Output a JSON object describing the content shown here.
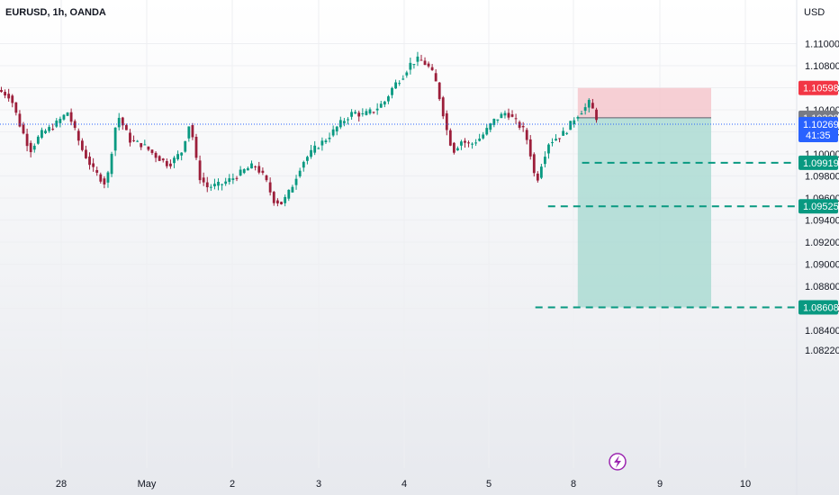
{
  "header": {
    "symbol_title": "EURUSD, 1h, OANDA",
    "currency": "USD"
  },
  "colors": {
    "up": "#089981",
    "down": "#9c1e3a",
    "stop_zone": "#f4c7cc",
    "target_zone": "#a8dad1",
    "stop_tag": "#f23645",
    "target_tag": "#089981",
    "current_tag": "#2962ff",
    "entry_tag": "#787b86",
    "grid": "#eeeff2"
  },
  "timer": "41:35",
  "chart_data": {
    "type": "candlestick",
    "symbol": "EURUSD",
    "timeframe": "1h",
    "ylim": [
      1.0815,
      1.1125
    ],
    "y_ticks": [
      "1.11000",
      "1.10800",
      "1.10600",
      "1.10400",
      "1.10200",
      "1.10000",
      "1.09800",
      "1.09600",
      "1.09400",
      "1.09200",
      "1.09000",
      "1.08800",
      "1.08600",
      "1.08400",
      "1.08220"
    ],
    "x_ticks": [
      {
        "label": "28",
        "day": 0
      },
      {
        "label": "May",
        "day": 1
      },
      {
        "label": "2",
        "day": 2
      },
      {
        "label": "3",
        "day": 3
      },
      {
        "label": "4",
        "day": 4
      },
      {
        "label": "5",
        "day": 5
      },
      {
        "label": "8",
        "day": 6
      },
      {
        "label": "9",
        "day": 7
      },
      {
        "label": "10",
        "day": 8
      }
    ],
    "price_path": [
      [
        -0.7,
        1.1058
      ],
      [
        -0.55,
        1.1052
      ],
      [
        -0.45,
        1.1028
      ],
      [
        -0.32,
        1.1003
      ],
      [
        -0.2,
        1.1018
      ],
      [
        -0.05,
        1.1025
      ],
      [
        0.12,
        1.1038
      ],
      [
        0.28,
        1.1005
      ],
      [
        0.42,
        1.0985
      ],
      [
        0.57,
        1.0972
      ],
      [
        0.7,
        1.1036
      ],
      [
        0.85,
        1.1012
      ],
      [
        1.0,
        1.1008
      ],
      [
        1.15,
        1.0998
      ],
      [
        1.3,
        1.099
      ],
      [
        1.45,
        1.1002
      ],
      [
        1.55,
        1.103
      ],
      [
        1.65,
        1.098
      ],
      [
        1.75,
        1.097
      ],
      [
        1.9,
        1.0972
      ],
      [
        2.05,
        1.0978
      ],
      [
        2.18,
        1.0985
      ],
      [
        2.3,
        1.099
      ],
      [
        2.42,
        1.0978
      ],
      [
        2.52,
        1.0958
      ],
      [
        2.62,
        1.0955
      ],
      [
        2.72,
        1.0968
      ],
      [
        2.85,
        1.0992
      ],
      [
        3.0,
        1.1005
      ],
      [
        3.15,
        1.1015
      ],
      [
        3.3,
        1.1028
      ],
      [
        3.45,
        1.1038
      ],
      [
        3.55,
        1.1035
      ],
      [
        3.7,
        1.104
      ],
      [
        3.82,
        1.1048
      ],
      [
        3.92,
        1.1062
      ],
      [
        4.02,
        1.107
      ],
      [
        4.12,
        1.1082
      ],
      [
        4.22,
        1.1086
      ],
      [
        4.32,
        1.108
      ],
      [
        4.4,
        1.107
      ],
      [
        4.48,
        1.1045
      ],
      [
        4.55,
        1.102
      ],
      [
        4.62,
        1.1002
      ],
      [
        4.72,
        1.1012
      ],
      [
        4.82,
        1.1008
      ],
      [
        4.95,
        1.1015
      ],
      [
        5.1,
        1.103
      ],
      [
        5.25,
        1.1038
      ],
      [
        5.35,
        1.103
      ],
      [
        5.47,
        1.102
      ],
      [
        5.55,
        1.0995
      ],
      [
        5.6,
        1.0972
      ],
      [
        5.66,
        1.099
      ],
      [
        5.75,
        1.101
      ],
      [
        5.85,
        1.1015
      ],
      [
        5.95,
        1.102
      ],
      [
        6.05,
        1.1032
      ],
      [
        6.12,
        1.1038
      ],
      [
        6.18,
        1.1042
      ],
      [
        6.24,
        1.1048
      ],
      [
        6.29,
        1.1033
      ]
    ],
    "position": {
      "entry": 1.10328,
      "stop": 1.10598,
      "current_price": 1.10269,
      "targets": [
        1.09919,
        1.09525,
        1.08608
      ],
      "start_day": 6.05,
      "end_day": 7.6
    },
    "tags": {
      "stop": "1.10598",
      "entry": "1.10328",
      "current": "1.10269",
      "target1": "1.09919",
      "target2": "1.09525",
      "target3": "1.08608"
    },
    "grid": true
  }
}
